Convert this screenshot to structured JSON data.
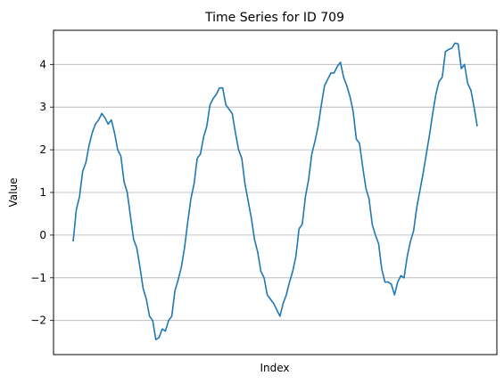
{
  "chart_data": {
    "type": "line",
    "title": "Time Series for ID 709",
    "xlabel": "Index",
    "ylabel": "Value",
    "ylim": [
      -2.8,
      4.8
    ],
    "yticks": [
      -2,
      -1,
      0,
      1,
      2,
      3,
      4
    ],
    "ytick_labels": [
      "−2",
      "−1",
      "0",
      "1",
      "2",
      "3",
      "4"
    ],
    "grid": "y",
    "line_color": "#1f77b4",
    "series": [
      {
        "values": [
          -0.15,
          0.6,
          0.9,
          1.5,
          1.7,
          2.1,
          2.4,
          2.6,
          2.7,
          2.85,
          2.75,
          2.6,
          2.7,
          2.4,
          2.0,
          1.85,
          1.25,
          1.0,
          0.45,
          -0.1,
          -0.3,
          -0.75,
          -1.25,
          -1.5,
          -1.9,
          -2.0,
          -2.45,
          -2.4,
          -2.2,
          -2.25,
          -2.0,
          -1.9,
          -1.3,
          -1.05,
          -0.75,
          -0.3,
          0.3,
          0.85,
          1.2,
          1.8,
          1.9,
          2.3,
          2.55,
          3.05,
          3.2,
          3.3,
          3.45,
          3.45,
          3.05,
          2.95,
          2.85,
          2.4,
          2.0,
          1.8,
          1.2,
          0.8,
          0.4,
          -0.1,
          -0.4,
          -0.85,
          -1.0,
          -1.4,
          -1.5,
          -1.6,
          -1.75,
          -1.9,
          -1.6,
          -1.4,
          -1.1,
          -0.85,
          -0.5,
          0.15,
          0.25,
          0.9,
          1.3,
          1.9,
          2.2,
          2.55,
          3.05,
          3.5,
          3.65,
          3.8,
          3.8,
          3.95,
          4.05,
          3.7,
          3.5,
          3.25,
          2.9,
          2.25,
          2.15,
          1.6,
          1.1,
          0.85,
          0.25,
          0.0,
          -0.2,
          -0.8,
          -1.1,
          -1.1,
          -1.15,
          -1.4,
          -1.1,
          -0.95,
          -1.0,
          -0.5,
          -0.15,
          0.1,
          0.65,
          1.05,
          1.45,
          1.9,
          2.35,
          2.85,
          3.3,
          3.6,
          3.7,
          4.3,
          4.35,
          4.38,
          4.5,
          4.48,
          3.9,
          4.0,
          3.55,
          3.4,
          3.0,
          2.55
        ]
      }
    ]
  }
}
